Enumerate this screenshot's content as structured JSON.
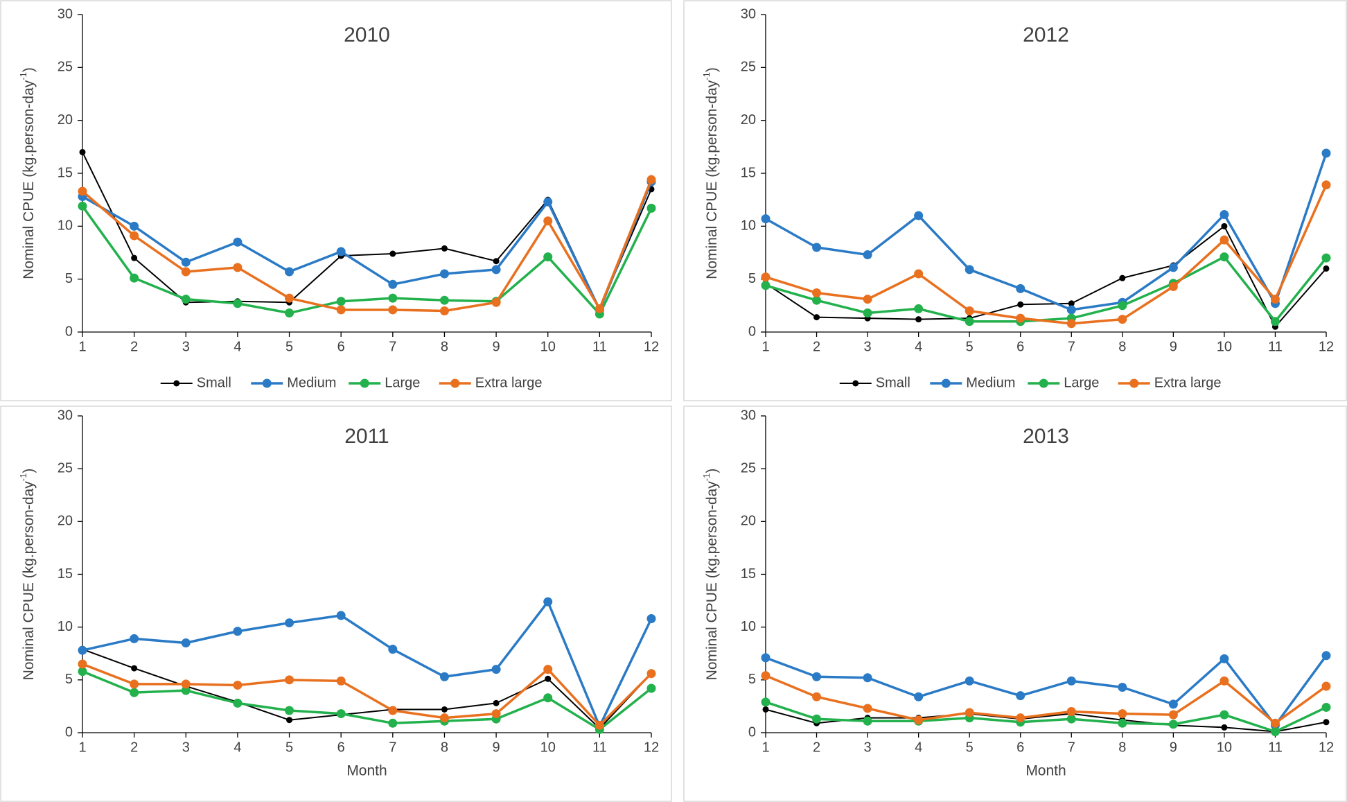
{
  "chart_data": [
    {
      "type": "line",
      "title": "2010",
      "ylabel": [
        "Nominal CPUE (kg.person-day",
        "-1",
        ")"
      ],
      "legend": "bottom",
      "x": [
        1,
        2,
        3,
        4,
        5,
        6,
        7,
        8,
        9,
        10,
        11,
        12
      ],
      "xlim": [
        1,
        12
      ],
      "xticks": [
        1,
        2,
        3,
        4,
        5,
        6,
        7,
        8,
        9,
        10,
        11,
        12
      ],
      "ylim": [
        0,
        30
      ],
      "yticks": [
        0,
        5,
        10,
        15,
        20,
        25,
        30
      ],
      "series": [
        {
          "name": "Small",
          "color": "#000000",
          "values": [
            17,
            7,
            2.8,
            2.9,
            2.8,
            7.2,
            7.4,
            7.9,
            6.7,
            12.5,
            2.2,
            13.5
          ]
        },
        {
          "name": "Medium",
          "color": "#2a7ac6",
          "values": [
            12.8,
            10,
            6.6,
            8.5,
            5.7,
            7.6,
            4.5,
            5.5,
            5.9,
            12.3,
            2.1,
            14.2
          ]
        },
        {
          "name": "Large",
          "color": "#22b14c",
          "values": [
            11.9,
            5.1,
            3.1,
            2.7,
            1.8,
            2.9,
            3.2,
            3.0,
            2.9,
            7.1,
            1.7,
            11.7
          ]
        },
        {
          "name": "Extra large",
          "color": "#e8701e",
          "values": [
            13.3,
            9.1,
            5.7,
            6.1,
            3.2,
            2.1,
            2.1,
            2.0,
            2.8,
            10.5,
            2.2,
            14.4
          ]
        }
      ]
    },
    {
      "type": "line",
      "title": "2012",
      "ylabel": [
        "Nominal CPUE (kg.person-day",
        "-1",
        ")"
      ],
      "legend": "bottom",
      "x": [
        1,
        2,
        3,
        4,
        5,
        6,
        7,
        8,
        9,
        10,
        11,
        12
      ],
      "xlim": [
        1,
        12
      ],
      "xticks": [
        1,
        2,
        3,
        4,
        5,
        6,
        7,
        8,
        9,
        10,
        11,
        12
      ],
      "ylim": [
        0,
        30
      ],
      "yticks": [
        0,
        5,
        10,
        15,
        20,
        25,
        30
      ],
      "series": [
        {
          "name": "Small",
          "color": "#000000",
          "values": [
            4.6,
            1.4,
            1.3,
            1.2,
            1.3,
            2.6,
            2.7,
            5.1,
            6.3,
            10.0,
            0.5,
            6.0
          ]
        },
        {
          "name": "Medium",
          "color": "#2a7ac6",
          "values": [
            10.7,
            8.0,
            7.3,
            11.0,
            5.9,
            4.1,
            2.1,
            2.8,
            6.1,
            11.1,
            2.7,
            16.9
          ]
        },
        {
          "name": "Large",
          "color": "#22b14c",
          "values": [
            4.4,
            3.0,
            1.8,
            2.2,
            1.0,
            1.0,
            1.3,
            2.5,
            4.6,
            7.1,
            1.0,
            7.0
          ]
        },
        {
          "name": "Extra large",
          "color": "#e8701e",
          "values": [
            5.2,
            3.7,
            3.1,
            5.5,
            2.0,
            1.3,
            0.8,
            1.2,
            4.3,
            8.7,
            3.1,
            13.9
          ]
        }
      ]
    },
    {
      "type": "line",
      "title": "2011",
      "ylabel": [
        "Nominal CPUE (kg.person-day",
        "-1",
        ")"
      ],
      "xlabel": "Month",
      "x": [
        1,
        2,
        3,
        4,
        5,
        6,
        7,
        8,
        9,
        10,
        11,
        12
      ],
      "xlim": [
        1,
        12
      ],
      "xticks": [
        1,
        2,
        3,
        4,
        5,
        6,
        7,
        8,
        9,
        10,
        11,
        12
      ],
      "ylim": [
        0,
        30
      ],
      "yticks": [
        0,
        5,
        10,
        15,
        20,
        25,
        30
      ],
      "series": [
        {
          "name": "Small",
          "color": "#000000",
          "values": [
            7.9,
            6.1,
            4.4,
            2.9,
            1.2,
            1.7,
            2.2,
            2.2,
            2.8,
            5.1,
            0.4,
            5.6
          ]
        },
        {
          "name": "Medium",
          "color": "#2a7ac6",
          "values": [
            7.8,
            8.9,
            8.5,
            9.6,
            10.4,
            11.1,
            7.9,
            5.3,
            6.0,
            12.4,
            0.6,
            10.8
          ]
        },
        {
          "name": "Large",
          "color": "#22b14c",
          "values": [
            5.8,
            3.8,
            4.0,
            2.8,
            2.1,
            1.8,
            0.9,
            1.1,
            1.3,
            3.3,
            0.3,
            4.2
          ]
        },
        {
          "name": "Extra large",
          "color": "#e8701e",
          "values": [
            6.5,
            4.6,
            4.6,
            4.5,
            5.0,
            4.9,
            2.1,
            1.4,
            1.8,
            6.0,
            0.7,
            5.6
          ]
        }
      ]
    },
    {
      "type": "line",
      "title": "2013",
      "ylabel": [
        "Nominal CPUE (kg.person-day",
        "-1",
        ")"
      ],
      "xlabel": "Month",
      "x": [
        1,
        2,
        3,
        4,
        5,
        6,
        7,
        8,
        9,
        10,
        11,
        12
      ],
      "xlim": [
        1,
        12
      ],
      "xticks": [
        1,
        2,
        3,
        4,
        5,
        6,
        7,
        8,
        9,
        10,
        11,
        12
      ],
      "ylim": [
        0,
        30
      ],
      "yticks": [
        0,
        5,
        10,
        15,
        20,
        25,
        30
      ],
      "series": [
        {
          "name": "Small",
          "color": "#000000",
          "values": [
            2.2,
            0.9,
            1.4,
            1.4,
            1.8,
            1.3,
            1.8,
            1.2,
            0.7,
            0.5,
            0.1,
            1.0
          ]
        },
        {
          "name": "Medium",
          "color": "#2a7ac6",
          "values": [
            7.1,
            5.3,
            5.2,
            3.4,
            4.9,
            3.5,
            4.9,
            4.3,
            2.7,
            7.0,
            0.7,
            7.3
          ]
        },
        {
          "name": "Large",
          "color": "#22b14c",
          "values": [
            2.9,
            1.3,
            1.1,
            1.1,
            1.4,
            1.0,
            1.3,
            0.9,
            0.8,
            1.7,
            0.1,
            2.4
          ]
        },
        {
          "name": "Extra large",
          "color": "#e8701e",
          "values": [
            5.4,
            3.4,
            2.3,
            1.2,
            1.9,
            1.4,
            2.0,
            1.8,
            1.7,
            4.9,
            0.9,
            4.4
          ]
        }
      ]
    }
  ]
}
